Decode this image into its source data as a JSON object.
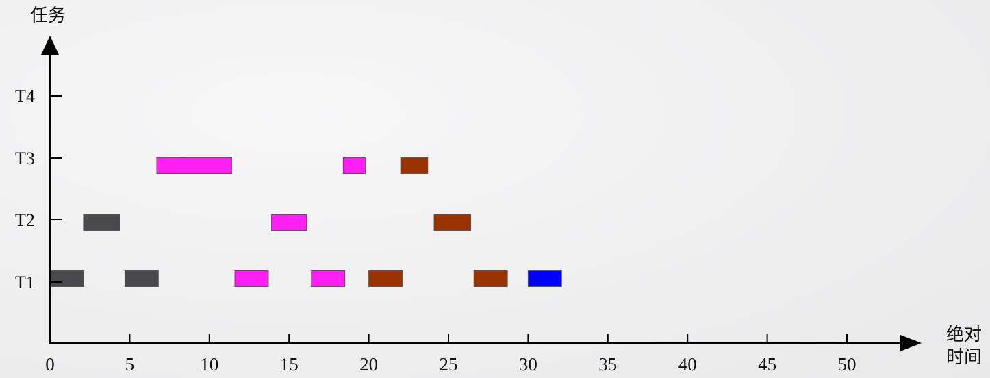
{
  "chart_data": {
    "type": "gantt",
    "ylabel": "任务",
    "xlabel_line1": "绝对",
    "xlabel_line2": "时间",
    "xlim": [
      0,
      55
    ],
    "xticks": [
      0,
      5,
      10,
      15,
      20,
      25,
      30,
      35,
      40,
      45,
      50
    ],
    "yticks": [
      "T1",
      "T2",
      "T3",
      "T4"
    ],
    "colors": {
      "gray": "#4a4a4e",
      "magenta": "#ff1ff0",
      "brown": "#993300",
      "blue": "#0000ff"
    },
    "bars": [
      {
        "task": "T1",
        "start": 0.0,
        "end": 2.1,
        "color": "gray"
      },
      {
        "task": "T1",
        "start": 4.7,
        "end": 6.8,
        "color": "gray"
      },
      {
        "task": "T1",
        "start": 11.6,
        "end": 13.7,
        "color": "magenta"
      },
      {
        "task": "T1",
        "start": 16.4,
        "end": 18.5,
        "color": "magenta"
      },
      {
        "task": "T1",
        "start": 20.0,
        "end": 22.1,
        "color": "brown"
      },
      {
        "task": "T1",
        "start": 26.6,
        "end": 28.7,
        "color": "brown"
      },
      {
        "task": "T1",
        "start": 30.0,
        "end": 32.1,
        "color": "blue"
      },
      {
        "task": "T2",
        "start": 2.1,
        "end": 4.4,
        "color": "gray"
      },
      {
        "task": "T2",
        "start": 13.9,
        "end": 16.1,
        "color": "magenta"
      },
      {
        "task": "T2",
        "start": 24.1,
        "end": 26.4,
        "color": "brown"
      },
      {
        "task": "T3",
        "start": 6.7,
        "end": 11.4,
        "color": "magenta"
      },
      {
        "task": "T3",
        "start": 18.4,
        "end": 19.8,
        "color": "magenta"
      },
      {
        "task": "T3",
        "start": 22.0,
        "end": 23.7,
        "color": "brown"
      }
    ]
  }
}
